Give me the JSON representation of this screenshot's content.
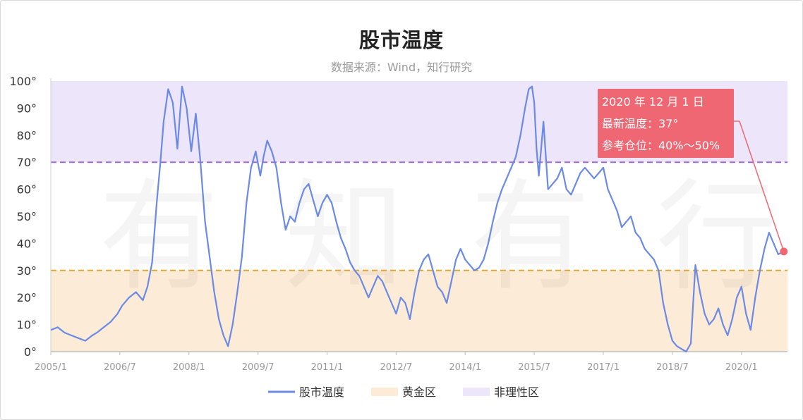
{
  "title": "股市温度",
  "subtitle": "数据来源：Wind，知行研究",
  "watermark": "有知有行",
  "chart_data": {
    "type": "line",
    "title": "股市温度",
    "xlabel": "",
    "ylabel": "",
    "ylim": [
      0,
      100
    ],
    "y_ticks": [
      "0°",
      "10°",
      "20°",
      "30°",
      "40°",
      "50°",
      "60°",
      "70°",
      "80°",
      "90°",
      "100°"
    ],
    "x_ticks": [
      "2005/1",
      "2006/7",
      "2008/1",
      "2009/7",
      "2011/1",
      "2012/7",
      "2014/1",
      "2015/7",
      "2017/1",
      "2018/7",
      "2020/1"
    ],
    "x_tick_values": [
      2005.0,
      2006.5,
      2008.0,
      2009.5,
      2011.0,
      2012.5,
      2014.0,
      2015.5,
      2017.0,
      2018.5,
      2020.0
    ],
    "xlim": [
      2005.0,
      2021.0
    ],
    "zones": [
      {
        "name": "黄金区",
        "from": 0,
        "to": 30,
        "color": "#fcebd6"
      },
      {
        "name": "非理性区",
        "from": 70,
        "to": 100,
        "color": "#ede5f9"
      }
    ],
    "reference_lines": [
      {
        "value": 70,
        "color": "#9b6ad6"
      },
      {
        "value": 30,
        "color": "#e0a832"
      }
    ],
    "series": [
      {
        "name": "股市温度",
        "color": "#6b8ae6",
        "x": [
          2005.0,
          2005.15,
          2005.3,
          2005.45,
          2005.6,
          2005.75,
          2005.9,
          2006.0,
          2006.15,
          2006.3,
          2006.45,
          2006.55,
          2006.7,
          2006.85,
          2007.0,
          2007.1,
          2007.2,
          2007.3,
          2007.38,
          2007.45,
          2007.55,
          2007.65,
          2007.75,
          2007.85,
          2007.95,
          2008.05,
          2008.15,
          2008.25,
          2008.35,
          2008.45,
          2008.55,
          2008.65,
          2008.75,
          2008.85,
          2008.95,
          2009.05,
          2009.15,
          2009.25,
          2009.35,
          2009.45,
          2009.55,
          2009.62,
          2009.7,
          2009.8,
          2009.9,
          2010.0,
          2010.1,
          2010.2,
          2010.3,
          2010.4,
          2010.5,
          2010.6,
          2010.7,
          2010.8,
          2010.9,
          2011.0,
          2011.1,
          2011.2,
          2011.3,
          2011.4,
          2011.5,
          2011.6,
          2011.7,
          2011.8,
          2011.9,
          2012.0,
          2012.1,
          2012.2,
          2012.3,
          2012.4,
          2012.5,
          2012.6,
          2012.7,
          2012.8,
          2012.9,
          2013.0,
          2013.1,
          2013.2,
          2013.3,
          2013.4,
          2013.5,
          2013.6,
          2013.7,
          2013.8,
          2013.9,
          2014.0,
          2014.1,
          2014.2,
          2014.3,
          2014.4,
          2014.5,
          2014.6,
          2014.7,
          2014.8,
          2014.9,
          2015.0,
          2015.1,
          2015.2,
          2015.3,
          2015.38,
          2015.45,
          2015.5,
          2015.55,
          2015.6,
          2015.7,
          2015.8,
          2015.9,
          2016.0,
          2016.1,
          2016.2,
          2016.3,
          2016.4,
          2016.5,
          2016.6,
          2016.7,
          2016.8,
          2016.9,
          2017.0,
          2017.1,
          2017.2,
          2017.3,
          2017.4,
          2017.5,
          2017.6,
          2017.7,
          2017.8,
          2017.9,
          2018.0,
          2018.1,
          2018.2,
          2018.3,
          2018.4,
          2018.5,
          2018.6,
          2018.7,
          2018.8,
          2018.9,
          2019.0,
          2019.1,
          2019.2,
          2019.3,
          2019.4,
          2019.5,
          2019.6,
          2019.7,
          2019.8,
          2019.9,
          2020.0,
          2020.1,
          2020.2,
          2020.3,
          2020.4,
          2020.5,
          2020.6,
          2020.7,
          2020.8,
          2020.92
        ],
        "values": [
          8,
          9,
          7,
          6,
          5,
          4,
          6,
          7,
          9,
          11,
          14,
          17,
          20,
          22,
          19,
          24,
          33,
          55,
          70,
          85,
          97,
          92,
          75,
          98,
          90,
          74,
          88,
          70,
          48,
          35,
          22,
          12,
          6,
          2,
          10,
          22,
          35,
          55,
          68,
          74,
          65,
          72,
          78,
          74,
          68,
          55,
          45,
          50,
          48,
          55,
          60,
          62,
          56,
          50,
          55,
          58,
          55,
          48,
          42,
          38,
          33,
          30,
          28,
          24,
          20,
          24,
          28,
          26,
          22,
          18,
          14,
          20,
          18,
          12,
          22,
          30,
          34,
          36,
          30,
          24,
          22,
          18,
          26,
          34,
          38,
          34,
          32,
          30,
          31,
          34,
          40,
          48,
          55,
          60,
          64,
          68,
          72,
          80,
          90,
          97,
          98,
          92,
          75,
          65,
          85,
          60,
          62,
          64,
          68,
          60,
          58,
          62,
          66,
          68,
          66,
          64,
          66,
          68,
          60,
          56,
          52,
          46,
          48,
          50,
          44,
          42,
          38,
          36,
          34,
          30,
          18,
          10,
          4,
          2,
          1,
          0,
          3,
          32,
          22,
          14,
          10,
          12,
          16,
          10,
          6,
          12,
          20,
          24,
          14,
          8,
          20,
          30,
          38,
          44,
          40,
          36,
          37
        ]
      }
    ],
    "annotation": {
      "title": "2020 年 12 月 1 日",
      "line1": "最新温度：37°",
      "line2": "参考仓位：40%～50%",
      "point": {
        "x": 2020.92,
        "y": 37
      },
      "color": "#ee6772"
    },
    "legend": {
      "placement": "bottom-center",
      "items": [
        {
          "label": "股市温度",
          "type": "line",
          "color": "#6b8ae6"
        },
        {
          "label": "黄金区",
          "type": "rect",
          "color": "#fcebd6"
        },
        {
          "label": "非理性区",
          "type": "rect",
          "color": "#ede5f9"
        }
      ]
    }
  }
}
